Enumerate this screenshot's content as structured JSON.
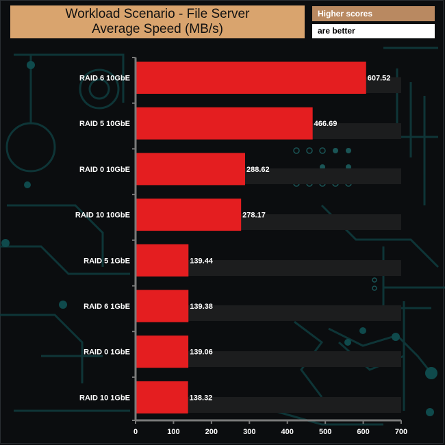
{
  "chart_data": {
    "type": "bar",
    "orientation": "horizontal",
    "title_line1": "Workload Scenario - File Server",
    "title_line2": "Average Speed (MB/s)",
    "legend_line1": "Higher scores",
    "legend_line2": "are better",
    "categories": [
      "RAID 6 10GbE",
      "RAID 5 10GbE",
      "RAID 0 10GbE",
      "RAID 10 10GbE",
      "RAID 5 1GbE",
      "RAID 6 1GbE",
      "RAID 0 1GbE",
      "RAID 10 1GbE"
    ],
    "values": [
      607.52,
      466.69,
      288.62,
      278.17,
      139.44,
      139.38,
      139.06,
      138.32
    ],
    "value_labels": [
      "607.52",
      "466.69",
      "288.62",
      "278.17",
      "139.44",
      "139.38",
      "139.06",
      "138.32"
    ],
    "xlim": [
      0,
      700
    ],
    "x_ticks": [
      0,
      100,
      200,
      300,
      400,
      500,
      600,
      700
    ],
    "bar_color": "#e41e20",
    "title_bg": "#d9a46e",
    "legend_color": "#b98961"
  }
}
